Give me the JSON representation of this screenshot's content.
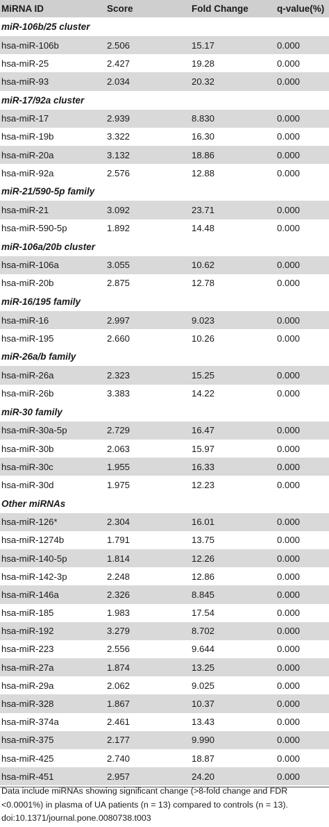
{
  "table": {
    "headers": [
      "MiRNA ID",
      "Score",
      "Fold Change",
      "q-value(%)"
    ],
    "groups": [
      {
        "name": "miR-106b/25 cluster",
        "rows": [
          [
            "hsa-miR-106b",
            "2.506",
            "15.17",
            "0.000"
          ],
          [
            "hsa-miR-25",
            "2.427",
            "19.28",
            "0.000"
          ],
          [
            "hsa-miR-93",
            "2.034",
            "20.32",
            "0.000"
          ]
        ]
      },
      {
        "name": "miR-17/92a cluster",
        "rows": [
          [
            "hsa-miR-17",
            "2.939",
            "8.830",
            "0.000"
          ],
          [
            "hsa-miR-19b",
            "3.322",
            "16.30",
            "0.000"
          ],
          [
            "hsa-miR-20a",
            "3.132",
            "18.86",
            "0.000"
          ],
          [
            "hsa-miR-92a",
            "2.576",
            "12.88",
            "0.000"
          ]
        ]
      },
      {
        "name": "miR-21/590-5p family",
        "rows": [
          [
            "hsa-miR-21",
            "3.092",
            "23.71",
            "0.000"
          ],
          [
            "hsa-miR-590-5p",
            "1.892",
            "14.48",
            "0.000"
          ]
        ]
      },
      {
        "name": "miR-106a/20b cluster",
        "rows": [
          [
            "hsa-miR-106a",
            "3.055",
            "10.62",
            "0.000"
          ],
          [
            "hsa-miR-20b",
            "2.875",
            "12.78",
            "0.000"
          ]
        ]
      },
      {
        "name": "miR-16/195 family",
        "rows": [
          [
            "hsa-miR-16",
            "2.997",
            "9.023",
            "0.000"
          ],
          [
            "hsa-miR-195",
            "2.660",
            "10.26",
            "0.000"
          ]
        ]
      },
      {
        "name": "miR-26a/b family",
        "rows": [
          [
            "hsa-miR-26a",
            "2.323",
            "15.25",
            "0.000"
          ],
          [
            "hsa-miR-26b",
            "3.383",
            "14.22",
            "0.000"
          ]
        ]
      },
      {
        "name": "miR-30 family",
        "rows": [
          [
            "hsa-miR-30a-5p",
            "2.729",
            "16.47",
            "0.000"
          ],
          [
            "hsa-miR-30b",
            "2.063",
            "15.97",
            "0.000"
          ],
          [
            "hsa-miR-30c",
            "1.955",
            "16.33",
            "0.000"
          ],
          [
            "hsa-miR-30d",
            "1.975",
            "12.23",
            "0.000"
          ]
        ]
      },
      {
        "name": "Other miRNAs",
        "rows": [
          [
            "hsa-miR-126*",
            "2.304",
            "16.01",
            "0.000"
          ],
          [
            "hsa-miR-1274b",
            "1.791",
            "13.75",
            "0.000"
          ],
          [
            "hsa-miR-140-5p",
            "1.814",
            "12.26",
            "0.000"
          ],
          [
            "hsa-miR-142-3p",
            "2.248",
            "12.86",
            "0.000"
          ],
          [
            "hsa-miR-146a",
            "2.326",
            "8.845",
            "0.000"
          ],
          [
            "hsa-miR-185",
            "1.983",
            "17.54",
            "0.000"
          ],
          [
            "hsa-miR-192",
            "3.279",
            "8.702",
            "0.000"
          ],
          [
            "hsa-miR-223",
            "2.556",
            "9.644",
            "0.000"
          ],
          [
            "hsa-miR-27a",
            "1.874",
            "13.25",
            "0.000"
          ],
          [
            "hsa-miR-29a",
            "2.062",
            "9.025",
            "0.000"
          ],
          [
            "hsa-miR-328",
            "1.867",
            "10.37",
            "0.000"
          ],
          [
            "hsa-miR-374a",
            "2.461",
            "13.43",
            "0.000"
          ],
          [
            "hsa-miR-375",
            "2.177",
            "9.990",
            "0.000"
          ],
          [
            "hsa-miR-425",
            "2.740",
            "18.87",
            "0.000"
          ],
          [
            "hsa-miR-451",
            "2.957",
            "24.20",
            "0.000"
          ]
        ]
      }
    ]
  },
  "footnote": {
    "line1": "Data include miRNAs showing significant change (>8-fold change and FDR",
    "line2": "<0.0001%) in plasma of UA patients (n = 13) compared to controls (n = 13).",
    "line3": "doi:10.1371/journal.pone.0080738.t003"
  },
  "colors": {
    "header_bg": "#cfcfcf",
    "shaded_row_bg": "#d9d9d9",
    "text": "#1a1a1a"
  }
}
